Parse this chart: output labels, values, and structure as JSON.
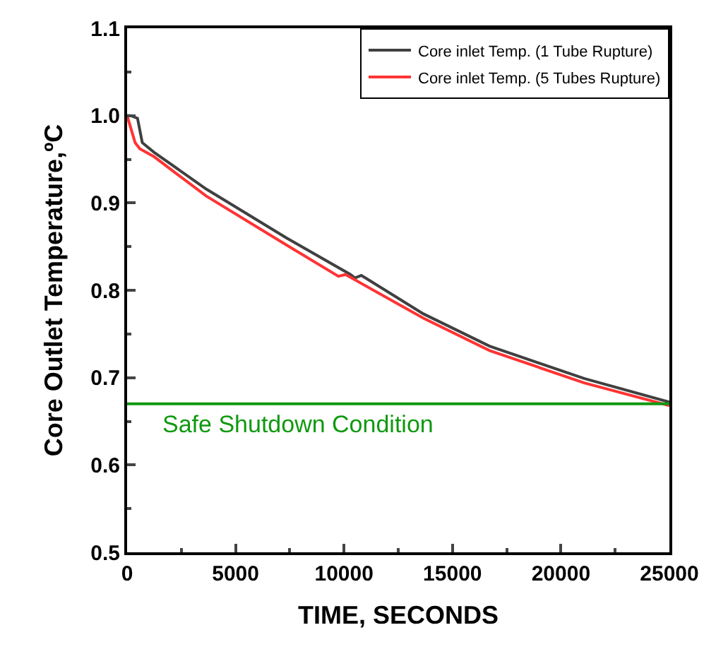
{
  "chart_data": {
    "type": "line",
    "xlabel": "TIME, SECONDS",
    "ylabel": "Core Outlet Temperature,ºC",
    "xlim": [
      0,
      25000
    ],
    "xticks": [
      0,
      5000,
      10000,
      15000,
      20000,
      25000
    ],
    "ylim": [
      0.5,
      1.1
    ],
    "yticks": [
      {
        "value": 0.5,
        "label": "0.5"
      },
      {
        "value": 0.6,
        "label": "0.6"
      },
      {
        "value": 0.7,
        "label": "0.7"
      },
      {
        "value": 0.8,
        "label": "0.8"
      },
      {
        "value": 0.9,
        "label": "0.9"
      },
      {
        "value": 1.0,
        "label": "1.0"
      },
      {
        "value": 1.1,
        "label": "1.1"
      }
    ],
    "legend": "top right",
    "marker": "none",
    "line_style": "solid",
    "series": [
      {
        "name": "Core inlet Temp. (1 Tube Rupture)",
        "color": "#404040",
        "x": [
          0,
          150,
          480,
          700,
          1240,
          3640,
          7340,
          10300,
          10500,
          10800,
          11000,
          13660,
          16710,
          21070,
          25000
        ],
        "values": [
          1.0,
          1.0,
          0.997,
          0.969,
          0.958,
          0.916,
          0.86,
          0.818,
          0.814,
          0.817,
          0.814,
          0.773,
          0.736,
          0.699,
          0.672
        ]
      },
      {
        "name": "Core inlet Temp. (5 Tubes Rupture)",
        "color": "#ff3333",
        "x": [
          0,
          370,
          590,
          1240,
          3640,
          7340,
          9740,
          10070,
          13660,
          16710,
          21070,
          25000
        ],
        "values": [
          1.0,
          0.969,
          0.962,
          0.953,
          0.908,
          0.852,
          0.816,
          0.818,
          0.768,
          0.731,
          0.694,
          0.668
        ]
      }
    ],
    "ref_lines": [
      {
        "axis": "y",
        "value": 0.67,
        "label": "Safe Shutdown Condition",
        "color": "#109910"
      }
    ]
  }
}
